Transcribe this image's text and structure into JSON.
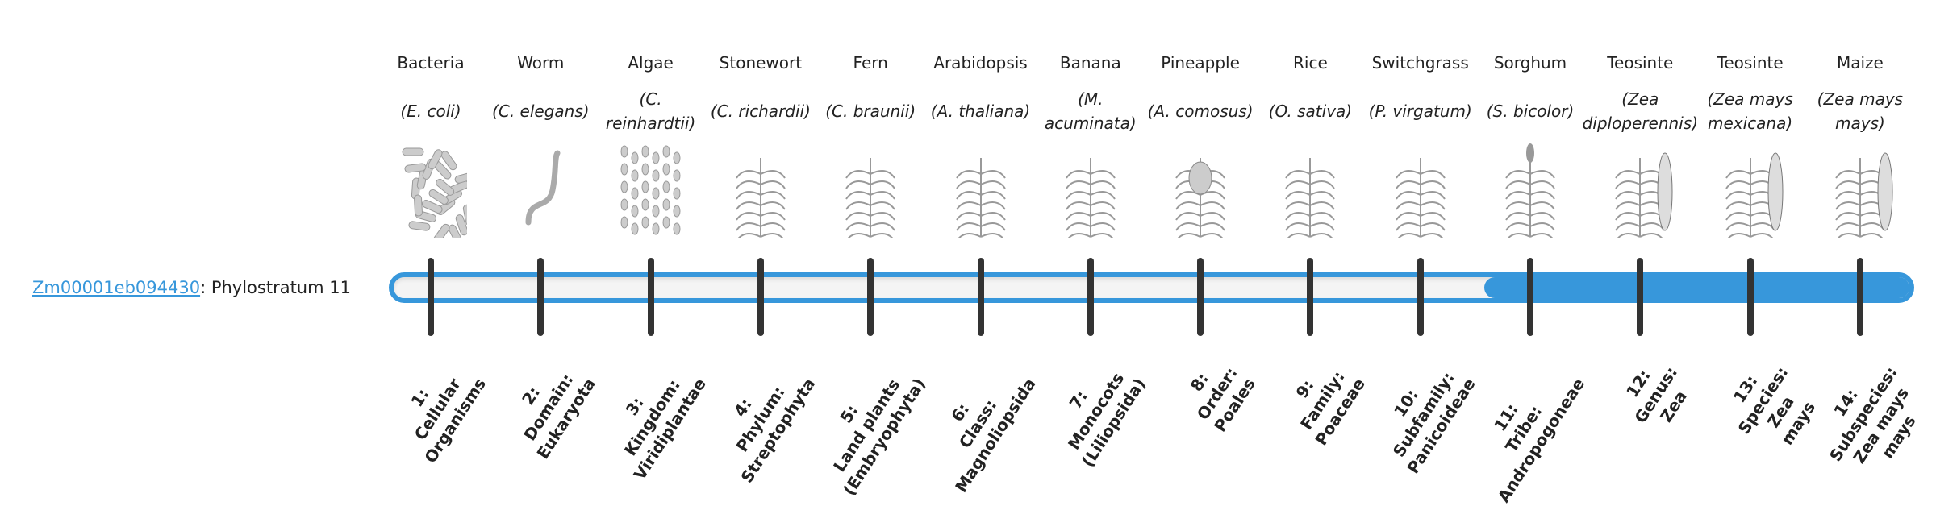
{
  "gene": {
    "id": "Zm00001eb094430",
    "suffix": ": Phylostratum 11"
  },
  "colors": {
    "accent": "#3797db",
    "tick": "#333333",
    "track": "#f4f4f4"
  },
  "progress": {
    "phylostratum": 11,
    "total": 14
  },
  "organisms": [
    {
      "common": "Bacteria",
      "scientific": "(E. coli)",
      "icon": "bacteria-icon"
    },
    {
      "common": "Worm",
      "scientific": "(C. elegans)",
      "icon": "worm-icon"
    },
    {
      "common": "Algae",
      "scientific": "(C. reinhardtii)",
      "icon": "algae-icon"
    },
    {
      "common": "Stonewort",
      "scientific": "(C. richardii)",
      "icon": "stonewort-icon"
    },
    {
      "common": "Fern",
      "scientific": "(C. braunii)",
      "icon": "fern-icon"
    },
    {
      "common": "Arabidopsis",
      "scientific": "(A. thaliana)",
      "icon": "arabidopsis-icon"
    },
    {
      "common": "Banana",
      "scientific": "(M. acuminata)",
      "icon": "banana-icon"
    },
    {
      "common": "Pineapple",
      "scientific": "(A. comosus)",
      "icon": "pineapple-icon"
    },
    {
      "common": "Rice",
      "scientific": "(O. sativa)",
      "icon": "rice-icon"
    },
    {
      "common": "Switchgrass",
      "scientific": "(P. virgatum)",
      "icon": "switchgrass-icon"
    },
    {
      "common": "Sorghum",
      "scientific": "(S. bicolor)",
      "icon": "sorghum-icon"
    },
    {
      "common": "Teosinte",
      "scientific": "(Zea diploperennis)",
      "icon": "teosinte-icon"
    },
    {
      "common": "Teosinte",
      "scientific": "(Zea mays mexicana)",
      "icon": "teosinte-icon"
    },
    {
      "common": "Maize",
      "scientific": "(Zea mays mays)",
      "icon": "maize-icon"
    }
  ],
  "strata": [
    [
      "1:",
      "Cellular",
      "Organisms"
    ],
    [
      "2:",
      "Domain:",
      "Eukaryota"
    ],
    [
      "3:",
      "Kingdom:",
      "Viridiplantae"
    ],
    [
      "4:",
      "Phylum:",
      "Streptophyta"
    ],
    [
      "5:",
      "Land plants",
      "(Embryophyta)"
    ],
    [
      "6:",
      "Class:",
      "Magnoliopsida"
    ],
    [
      "7:",
      "Monocots",
      "(Liliopsida)"
    ],
    [
      "8:",
      "Order:",
      "Poales"
    ],
    [
      "9:",
      "Family:",
      "Poaceae"
    ],
    [
      "10:",
      "Subfamily:",
      "Panicoideae"
    ],
    [
      "11:",
      "Tribe:",
      "Andropogoneae"
    ],
    [
      "12:",
      "Genus:",
      "Zea"
    ],
    [
      "13:",
      "Species:",
      "Zea",
      "mays"
    ],
    [
      "14:",
      "Subspecies:",
      "Zea mays",
      "mays"
    ]
  ]
}
